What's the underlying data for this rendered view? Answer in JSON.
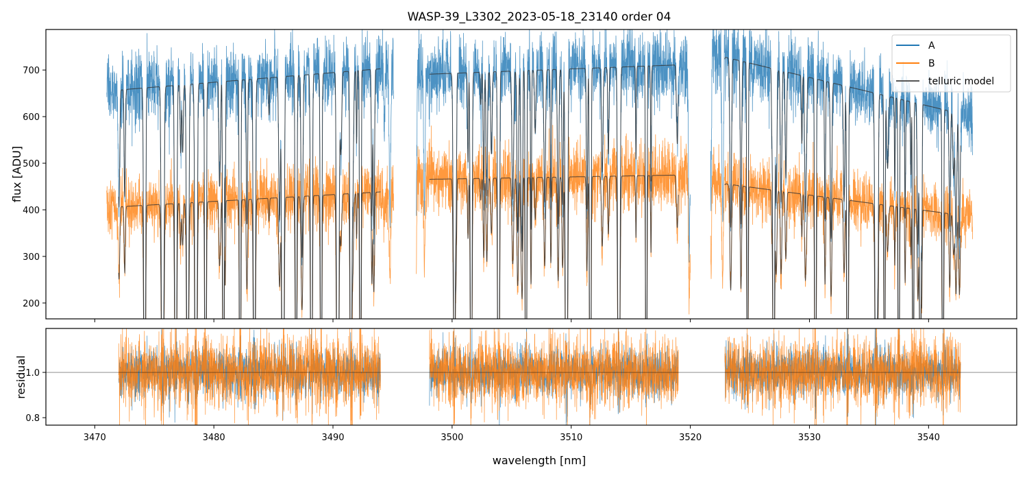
{
  "chart_data": {
    "type": "line",
    "title": "WASP-39_L3302_2023-05-18_23140  order 04",
    "panels": [
      {
        "name": "flux",
        "ylabel": "flux [ADU]",
        "ylim": [
          166,
          787
        ],
        "yticks": [
          200,
          300,
          400,
          500,
          600,
          700
        ],
        "legend": {
          "placement": "top-right",
          "entries": [
            "A",
            "B",
            "telluric model"
          ]
        }
      },
      {
        "name": "residual",
        "ylabel": "residual",
        "ylim": [
          0.767,
          1.194
        ],
        "yticks": [
          "0.8",
          "1.0"
        ],
        "reference_line": 1.0
      }
    ],
    "xlabel": "wavelength [nm]",
    "xlim": [
      3465.9,
      3547.4
    ],
    "xticks": [
      3470,
      3480,
      3490,
      3500,
      3510,
      3520,
      3530,
      3540
    ],
    "segments": [
      {
        "data_range": [
          3471.0,
          3495.1
        ],
        "model_range": [
          3472.0,
          3494.0
        ],
        "A_continuum": [
          655,
          705
        ],
        "B_continuum": [
          405,
          440
        ]
      },
      {
        "data_range": [
          3497.0,
          3520.0
        ],
        "model_range": [
          3498.1,
          3519.0
        ],
        "A_continuum": [
          690,
          712
        ],
        "B_continuum": [
          465,
          475
        ]
      },
      {
        "data_range": [
          3521.7,
          3543.7
        ],
        "model_range": [
          3522.9,
          3542.7
        ],
        "A_continuum": [
          735,
          600
        ],
        "B_continuum": [
          460,
          385
        ]
      }
    ],
    "telluric_lines_nm": [
      3474.2,
      3475.7,
      3476.8,
      3477.8,
      3478.5,
      3479.3,
      3480.8,
      3482.2,
      3483.4,
      3485.8,
      3486.9,
      3488.2,
      3489.0,
      3490.4,
      3491.5,
      3492.3,
      3500.2,
      3501.6,
      3503.9,
      3506.2,
      3509.6,
      3511.6,
      3514.0,
      3516.3,
      3524.8,
      3527.0,
      3530.5,
      3533.2,
      3535.6,
      3536.3,
      3537.5,
      3538.7,
      3539.3,
      3541.2
    ],
    "series": [
      {
        "name": "A",
        "color": "#1f77b4"
      },
      {
        "name": "B",
        "color": "#ff7f0e"
      },
      {
        "name": "telluric model",
        "color": "#333333"
      }
    ]
  }
}
